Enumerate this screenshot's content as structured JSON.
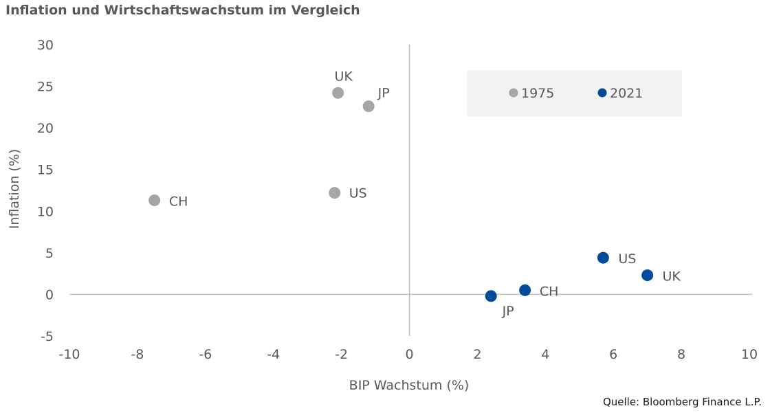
{
  "title": "Inflation und Wirtschaftswachstum im Vergleich",
  "source": "Quelle: Bloomberg Finance L.P.",
  "colors": {
    "series_1975": "#a6a6a6",
    "series_2021": "#004c99",
    "axis": "#bfbfbf",
    "text": "#595959",
    "legend_bg": "#f2f2f2"
  },
  "chart_data": {
    "type": "scatter",
    "xlabel": "BIP Wachstum (%)",
    "ylabel": "Inflation (%)",
    "xlim": [
      -10,
      10
    ],
    "ylim": [
      -5,
      30
    ],
    "xticks": [
      "-10",
      "-8",
      "-6",
      "-4",
      "-2",
      "0",
      "2",
      "4",
      "6",
      "8",
      "10"
    ],
    "yticks": [
      "30",
      "25",
      "20",
      "15",
      "10",
      "5",
      "0",
      "-5"
    ],
    "grid": false,
    "legend": "top-right",
    "series": [
      {
        "name": "1975",
        "color": "#a6a6a6",
        "points": [
          {
            "label": "UK",
            "x": -2.1,
            "y": 24.2
          },
          {
            "label": "JP",
            "x": -1.2,
            "y": 22.6
          },
          {
            "label": "US",
            "x": -2.2,
            "y": 12.2
          },
          {
            "label": "CH",
            "x": -7.5,
            "y": 11.3
          }
        ]
      },
      {
        "name": "2021",
        "color": "#004c99",
        "points": [
          {
            "label": "US",
            "x": 5.7,
            "y": 4.4
          },
          {
            "label": "UK",
            "x": 7.0,
            "y": 2.3
          },
          {
            "label": "CH",
            "x": 3.4,
            "y": 0.5
          },
          {
            "label": "JP",
            "x": 2.4,
            "y": -0.2
          }
        ]
      }
    ]
  }
}
